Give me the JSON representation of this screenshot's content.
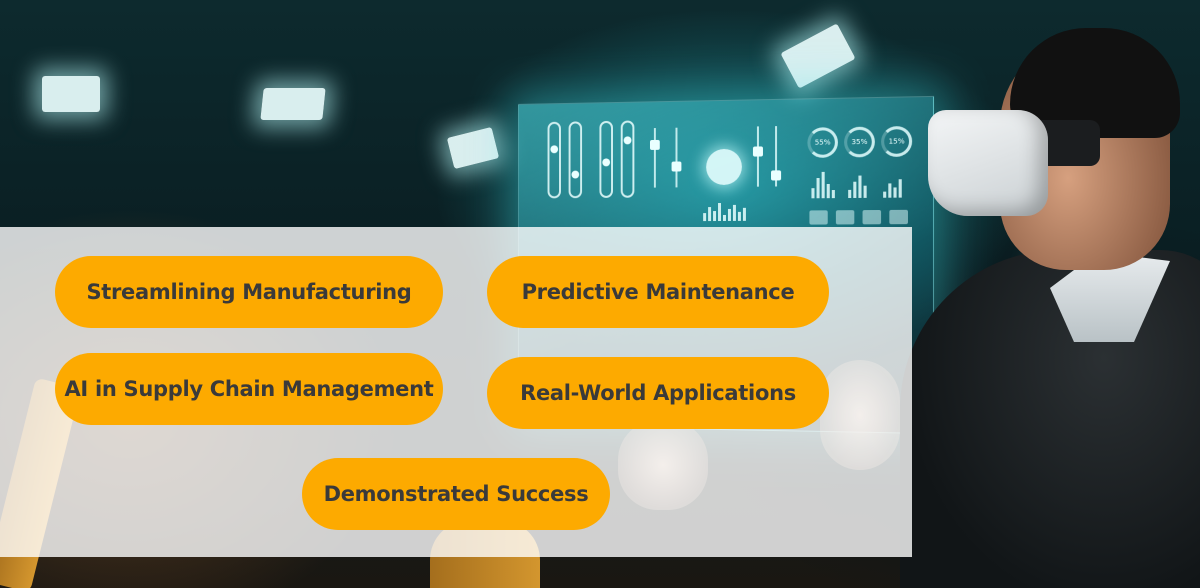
{
  "topics": [
    {
      "label": "Streamlining Manufacturing"
    },
    {
      "label": "Predictive Maintenance"
    },
    {
      "label": "AI in Supply Chain Management"
    },
    {
      "label": "Real-World Applications"
    },
    {
      "label": "Demonstrated Success"
    }
  ],
  "dashboard": {
    "gauges": [
      "55%",
      "35%",
      "15%"
    ]
  },
  "colors": {
    "pill_background": "#fdaa00",
    "pill_text": "#3a3a3a",
    "overlay": "rgba(255,255,255,0.80)",
    "hologram": "#50e6f0"
  }
}
